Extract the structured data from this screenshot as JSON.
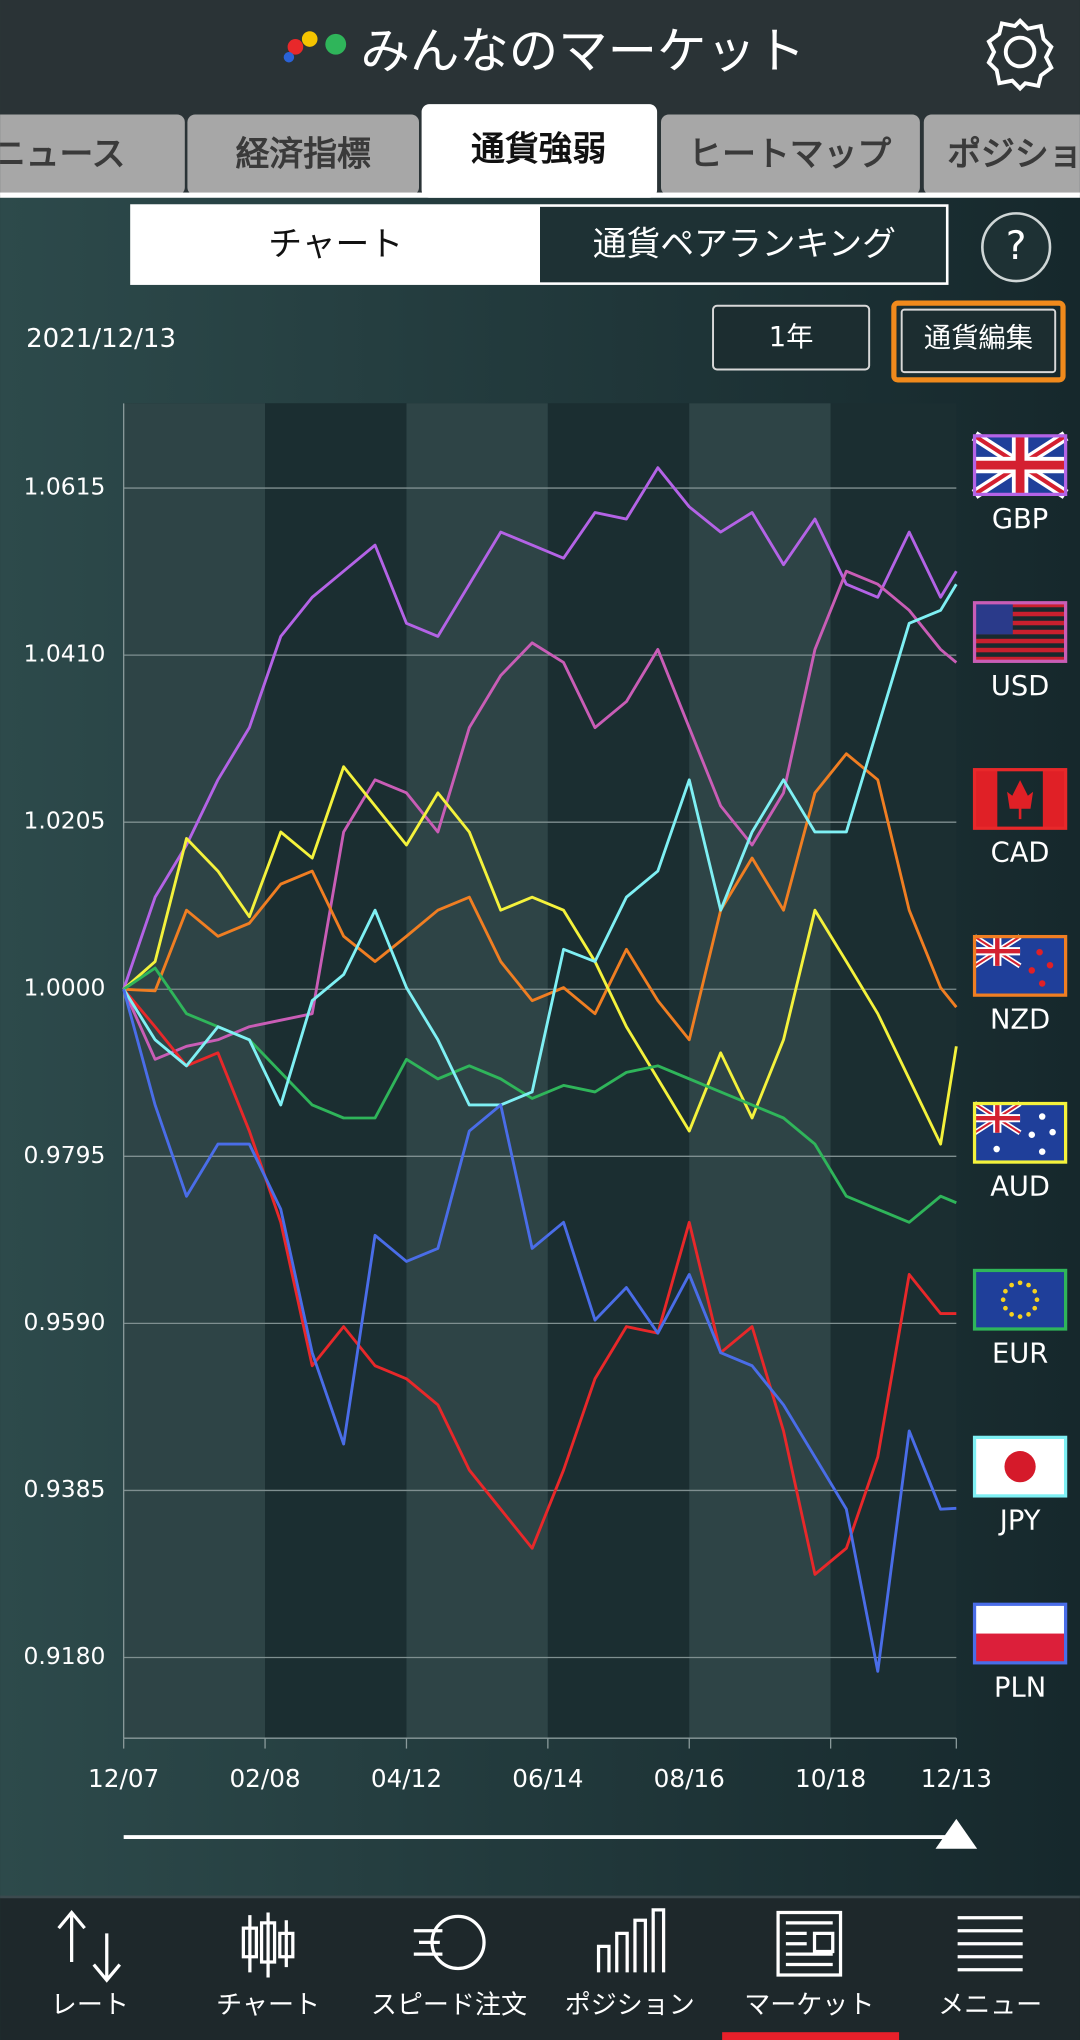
{
  "header": {
    "title": "みんなのマーケット"
  },
  "tabs": [
    "ニュース",
    "経済指標",
    "通貨強弱",
    "ヒートマップ",
    "ポジション"
  ],
  "segments": [
    "チャート",
    "通貨ペアランキング"
  ],
  "help": "?",
  "date": "2021/12/13",
  "period": "1年",
  "edit_button": "通貨編集",
  "chart_data": {
    "type": "line",
    "x": [
      0,
      2,
      4,
      6,
      8,
      10,
      12,
      14,
      16,
      18,
      20,
      22,
      24,
      26,
      28,
      30,
      32,
      34,
      36,
      38,
      40,
      42,
      44,
      46,
      48,
      50,
      52,
      53
    ],
    "xlim": [
      0,
      53
    ],
    "xticks": [
      {
        "value": 0,
        "label": "12/07"
      },
      {
        "value": 9,
        "label": "02/08"
      },
      {
        "value": 18,
        "label": "04/12"
      },
      {
        "value": 27,
        "label": "06/14"
      },
      {
        "value": 36,
        "label": "08/16"
      },
      {
        "value": 45,
        "label": "10/18"
      },
      {
        "value": 53,
        "label": "12/13"
      }
    ],
    "ylim": [
      0.9081,
      1.0719
    ],
    "yticks": [
      {
        "value": 0.918,
        "label": "0.9180"
      },
      0.9385,
      {
        "value": 0.959,
        "label": "0.9590"
      },
      0.9795,
      {
        "value": 1.0,
        "label": "1.0000"
      },
      1.0205,
      {
        "value": 1.041,
        "label": "1.0410"
      },
      1.0615
    ],
    "grid": true,
    "legend": "right",
    "series": [
      {
        "name": "GBP",
        "color": "#b463e6",
        "values": [
          1.0,
          1.0113,
          1.0177,
          1.0257,
          1.0321,
          1.0433,
          1.0481,
          1.0513,
          1.0545,
          1.0449,
          1.0433,
          1.0497,
          1.0561,
          1.0545,
          1.0529,
          1.0585,
          1.0577,
          1.064,
          1.0592,
          1.0561,
          1.0585,
          1.0521,
          1.0577,
          1.0497,
          1.0481,
          1.0561,
          1.0481,
          1.0513
        ]
      },
      {
        "name": "USD",
        "color": "#c95db6",
        "values": [
          1.0,
          0.9914,
          0.993,
          0.9938,
          0.9954,
          0.9962,
          0.997,
          1.0193,
          1.0257,
          1.0241,
          1.0193,
          1.0321,
          1.0385,
          1.0425,
          1.0401,
          1.0321,
          1.0353,
          1.0417,
          1.0321,
          1.0225,
          1.0177,
          1.0241,
          1.0417,
          1.0513,
          1.0497,
          1.0465,
          1.0417,
          1.0401
        ]
      },
      {
        "name": "CAD",
        "color": "#e8282a",
        "values": [
          1.0,
          0.9954,
          0.9906,
          0.9922,
          0.9826,
          0.9714,
          0.9538,
          0.9586,
          0.9538,
          0.9522,
          0.949,
          0.941,
          0.9362,
          0.9314,
          0.941,
          0.9522,
          0.9586,
          0.9578,
          0.9714,
          0.9554,
          0.9586,
          0.9458,
          0.9282,
          0.9314,
          0.9426,
          0.965,
          0.9602,
          0.9602
        ]
      },
      {
        "name": "NZD",
        "color": "#f07e22",
        "values": [
          1.0,
          0.9998,
          1.0097,
          1.0065,
          1.0081,
          1.0129,
          1.0145,
          1.0065,
          1.0034,
          1.0065,
          1.0097,
          1.0113,
          1.0034,
          0.9986,
          1.0002,
          0.997,
          1.0049,
          0.9986,
          0.9938,
          1.0097,
          1.0161,
          1.0097,
          1.0241,
          1.0289,
          1.0257,
          1.0097,
          1.0002,
          0.9978
        ]
      },
      {
        "name": "AUD",
        "color": "#f4f23c",
        "values": [
          1.0,
          1.0034,
          1.0185,
          1.0145,
          1.0089,
          1.0193,
          1.0161,
          1.0273,
          1.0225,
          1.0177,
          1.0241,
          1.0193,
          1.0097,
          1.0113,
          1.0097,
          1.0034,
          0.9954,
          0.989,
          0.9826,
          0.9922,
          0.9842,
          0.9938,
          1.0097,
          1.0034,
          0.997,
          0.989,
          0.981,
          0.993
        ]
      },
      {
        "name": "EUR",
        "color": "#2fb55a",
        "values": [
          1.0,
          1.0026,
          0.997,
          0.9954,
          0.9938,
          0.9898,
          0.9858,
          0.9842,
          0.9842,
          0.9914,
          0.989,
          0.9906,
          0.989,
          0.9866,
          0.9882,
          0.9874,
          0.9898,
          0.9906,
          0.989,
          0.9874,
          0.9858,
          0.9842,
          0.981,
          0.9746,
          0.973,
          0.9714,
          0.9746,
          0.9738
        ]
      },
      {
        "name": "JPY",
        "color": "#7ff0f4",
        "values": [
          1.0,
          0.9938,
          0.9906,
          0.9954,
          0.9938,
          0.9858,
          0.9986,
          1.0018,
          1.0097,
          1.0002,
          0.9938,
          0.9858,
          0.9858,
          0.9874,
          1.0049,
          1.0034,
          1.0113,
          1.0145,
          1.0257,
          1.0097,
          1.0193,
          1.0257,
          1.0193,
          1.0193,
          1.0321,
          1.0449,
          1.0465,
          1.0497
        ]
      },
      {
        "name": "PLN",
        "color": "#4a6de8",
        "values": [
          1.0,
          0.9858,
          0.9746,
          0.981,
          0.981,
          0.973,
          0.9554,
          0.9442,
          0.9698,
          0.9666,
          0.9682,
          0.9826,
          0.9858,
          0.9682,
          0.9714,
          0.9594,
          0.9634,
          0.9578,
          0.965,
          0.9554,
          0.9538,
          0.949,
          0.9426,
          0.9362,
          0.9163,
          0.9458,
          0.9362,
          0.9363
        ]
      }
    ]
  },
  "nav": [
    "レート",
    "チャート",
    "スピード注文",
    "ポジション",
    "マーケット",
    "メニュー"
  ]
}
